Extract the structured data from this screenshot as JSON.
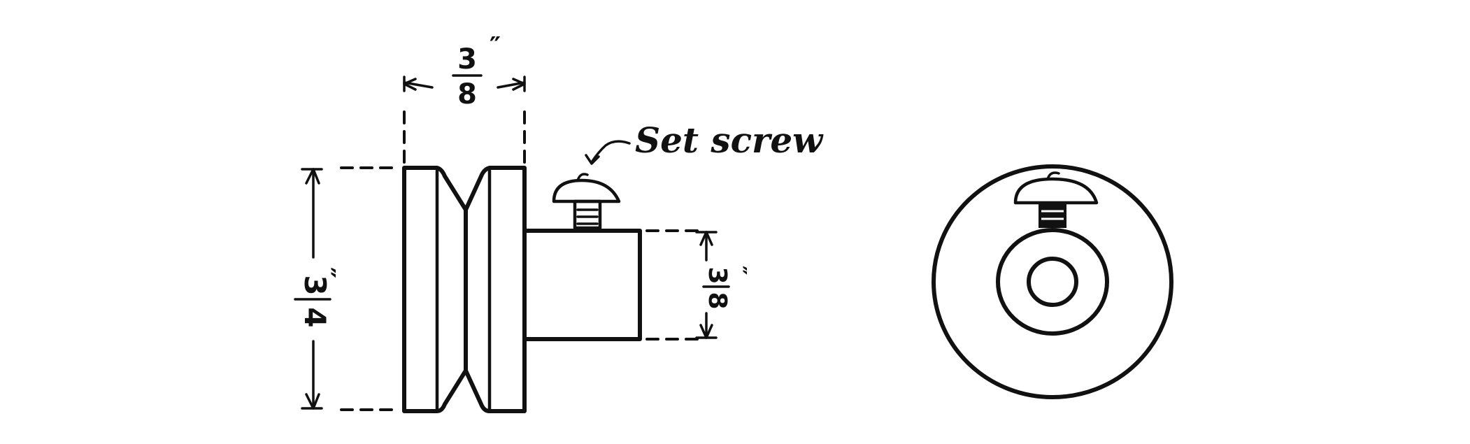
{
  "labels": {
    "set_screw": "Set screw",
    "top_width": {
      "numerator": "3",
      "denominator": "8",
      "unit": "″"
    },
    "pulley_height": {
      "numerator": "3",
      "denominator": "4",
      "unit": "″"
    },
    "hub_height": {
      "numerator": "3",
      "denominator": "8",
      "unit": "″"
    }
  }
}
